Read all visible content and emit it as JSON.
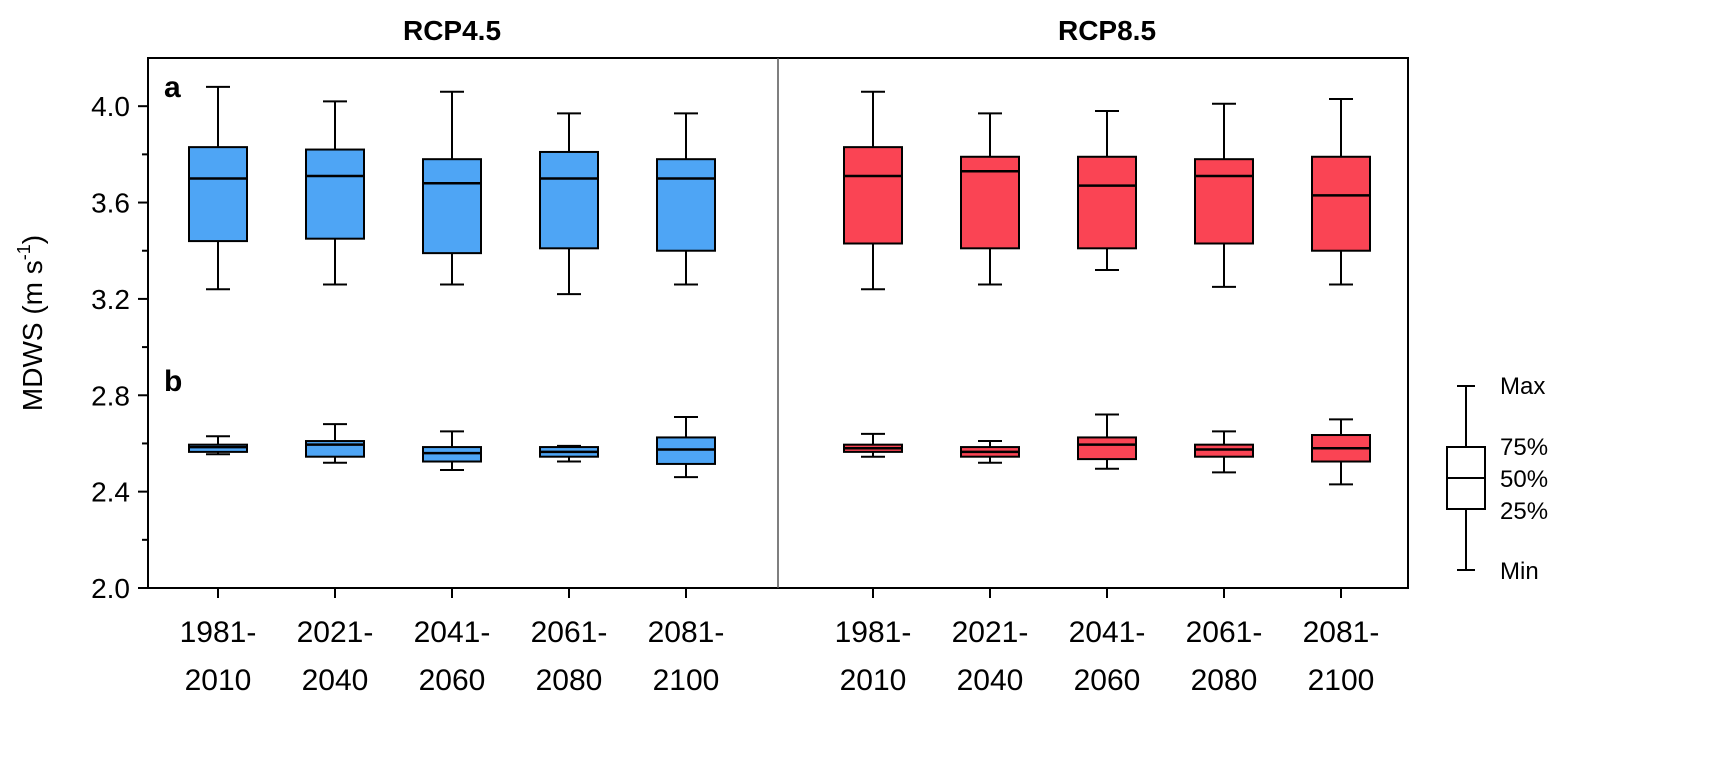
{
  "chart_data": {
    "type": "boxplot",
    "ylabel": "MDWS (m s",
    "ylabel_sup": "-1",
    "ylabel_close": ")",
    "ylim": [
      2.0,
      4.2
    ],
    "yticks": [
      "2.0",
      "2.4",
      "2.8",
      "3.2",
      "3.6",
      "4.0"
    ],
    "ytick_values": [
      2.0,
      2.4,
      2.8,
      3.2,
      3.6,
      4.0
    ],
    "y_minor_ticks": [
      2.2,
      2.6,
      3.0,
      3.4,
      3.8
    ],
    "grid": false,
    "legend": {
      "placement": "right",
      "labels": {
        "max": "Max",
        "q3": "75%",
        "median": "50%",
        "q1": "25%",
        "min": "Min"
      }
    },
    "groups": [
      {
        "title": "RCP4.5",
        "color": "#4ea5f5",
        "categories": [
          {
            "line1": "1981-",
            "line2": "2010"
          },
          {
            "line1": "2021-",
            "line2": "2040"
          },
          {
            "line1": "2041-",
            "line2": "2060"
          },
          {
            "line1": "2061-",
            "line2": "2080"
          },
          {
            "line1": "2081-",
            "line2": "2100"
          }
        ],
        "series": [
          {
            "label": "a",
            "boxes": [
              {
                "min": 3.24,
                "q1": 3.44,
                "median": 3.7,
                "q3": 3.83,
                "max": 4.08
              },
              {
                "min": 3.26,
                "q1": 3.45,
                "median": 3.71,
                "q3": 3.82,
                "max": 4.02
              },
              {
                "min": 3.26,
                "q1": 3.39,
                "median": 3.68,
                "q3": 3.78,
                "max": 4.06
              },
              {
                "min": 3.22,
                "q1": 3.41,
                "median": 3.7,
                "q3": 3.81,
                "max": 3.97
              },
              {
                "min": 3.26,
                "q1": 3.4,
                "median": 3.7,
                "q3": 3.78,
                "max": 3.97
              }
            ]
          },
          {
            "label": "b",
            "boxes": [
              {
                "min": 2.555,
                "q1": 2.565,
                "median": 2.585,
                "q3": 2.595,
                "max": 2.63
              },
              {
                "min": 2.52,
                "q1": 2.545,
                "median": 2.595,
                "q3": 2.61,
                "max": 2.68
              },
              {
                "min": 2.49,
                "q1": 2.525,
                "median": 2.56,
                "q3": 2.585,
                "max": 2.65
              },
              {
                "min": 2.525,
                "q1": 2.545,
                "median": 2.565,
                "q3": 2.585,
                "max": 2.59
              },
              {
                "min": 2.46,
                "q1": 2.515,
                "median": 2.575,
                "q3": 2.625,
                "max": 2.71
              }
            ]
          }
        ]
      },
      {
        "title": "RCP8.5",
        "color": "#fa4454",
        "categories": [
          {
            "line1": "1981-",
            "line2": "2010"
          },
          {
            "line1": "2021-",
            "line2": "2040"
          },
          {
            "line1": "2041-",
            "line2": "2060"
          },
          {
            "line1": "2061-",
            "line2": "2080"
          },
          {
            "line1": "2081-",
            "line2": "2100"
          }
        ],
        "series": [
          {
            "label": "",
            "boxes": [
              {
                "min": 3.24,
                "q1": 3.43,
                "median": 3.71,
                "q3": 3.83,
                "max": 4.06
              },
              {
                "min": 3.26,
                "q1": 3.41,
                "median": 3.73,
                "q3": 3.79,
                "max": 3.97
              },
              {
                "min": 3.32,
                "q1": 3.41,
                "median": 3.67,
                "q3": 3.79,
                "max": 3.98
              },
              {
                "min": 3.25,
                "q1": 3.43,
                "median": 3.71,
                "q3": 3.78,
                "max": 4.01
              },
              {
                "min": 3.26,
                "q1": 3.4,
                "median": 3.63,
                "q3": 3.79,
                "max": 4.03
              }
            ]
          },
          {
            "label": "",
            "boxes": [
              {
                "min": 2.545,
                "q1": 2.565,
                "median": 2.58,
                "q3": 2.595,
                "max": 2.64
              },
              {
                "min": 2.52,
                "q1": 2.545,
                "median": 2.565,
                "q3": 2.585,
                "max": 2.61
              },
              {
                "min": 2.495,
                "q1": 2.535,
                "median": 2.595,
                "q3": 2.625,
                "max": 2.72
              },
              {
                "min": 2.48,
                "q1": 2.545,
                "median": 2.575,
                "q3": 2.595,
                "max": 2.65
              },
              {
                "min": 2.43,
                "q1": 2.525,
                "median": 2.58,
                "q3": 2.635,
                "max": 2.7
              }
            ]
          }
        ]
      }
    ]
  }
}
